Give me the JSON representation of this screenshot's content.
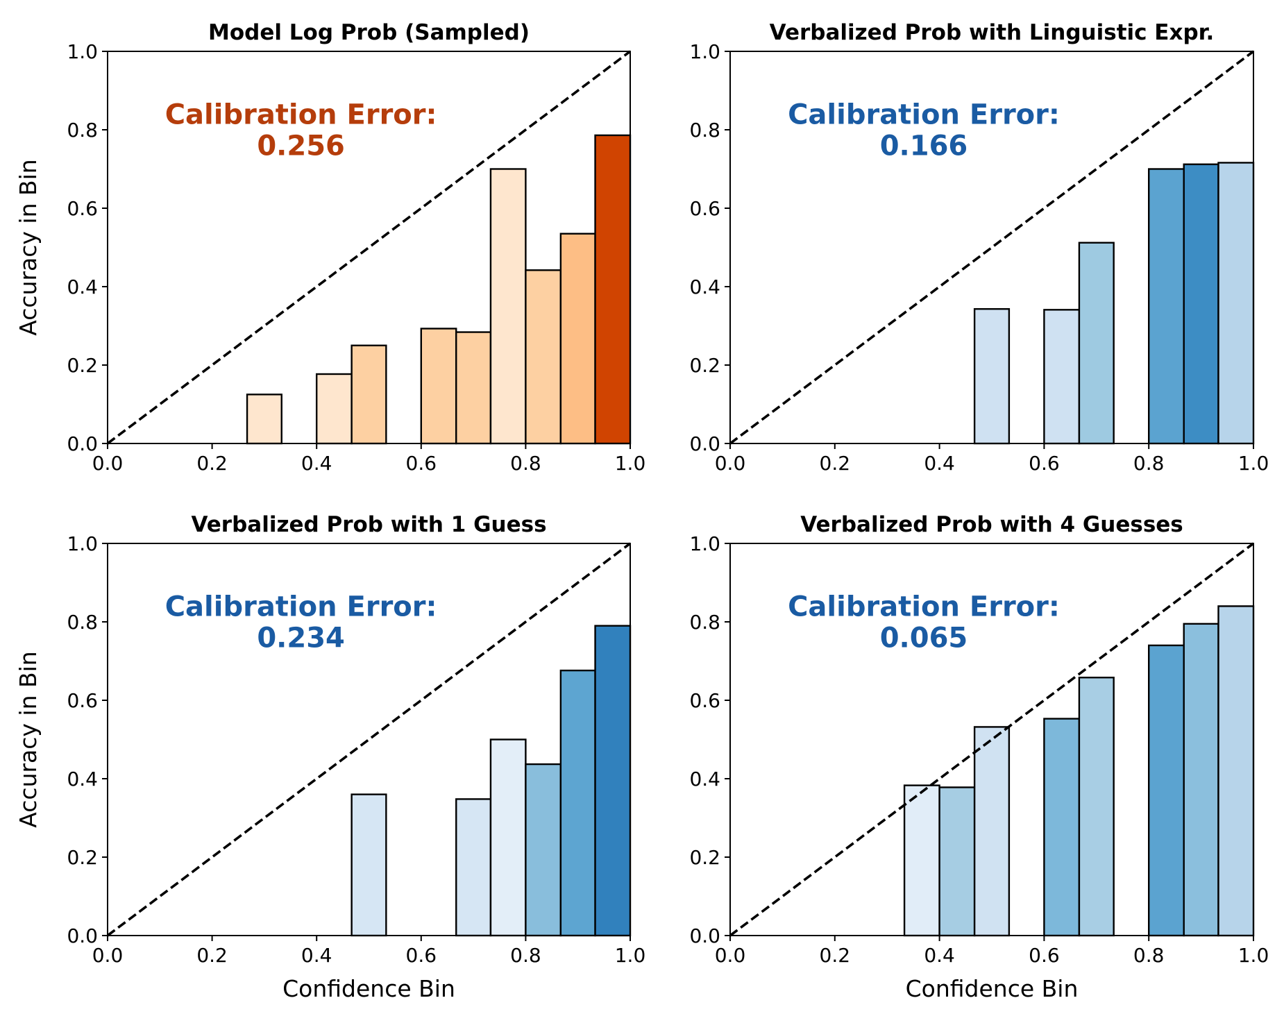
{
  "chart_data": [
    {
      "type": "bar",
      "title": "Model Log Prob (Sampled)",
      "xlabel": "",
      "ylabel": "Accuracy in Bin",
      "xlim": [
        0,
        1
      ],
      "ylim": [
        0,
        1
      ],
      "xticks": [
        "0.0",
        "0.2",
        "0.4",
        "0.6",
        "0.8",
        "1.0"
      ],
      "yticks": [
        "0.0",
        "0.2",
        "0.4",
        "0.6",
        "0.8",
        "1.0"
      ],
      "annotation": {
        "label": "Calibration Error:",
        "value": "0.256",
        "color": "#b53d0b"
      },
      "diagonal": true,
      "bins": [
        {
          "x0": 0.267,
          "x1": 0.333,
          "value": 0.125,
          "color": "#fee6ce"
        },
        {
          "x0": 0.4,
          "x1": 0.467,
          "value": 0.177,
          "color": "#fee6ce"
        },
        {
          "x0": 0.467,
          "x1": 0.533,
          "value": 0.25,
          "color": "#fdd0a2"
        },
        {
          "x0": 0.6,
          "x1": 0.667,
          "value": 0.293,
          "color": "#fdd0a2"
        },
        {
          "x0": 0.667,
          "x1": 0.733,
          "value": 0.284,
          "color": "#fdd0a2"
        },
        {
          "x0": 0.733,
          "x1": 0.8,
          "value": 0.7,
          "color": "#fee6ce"
        },
        {
          "x0": 0.8,
          "x1": 0.867,
          "value": 0.442,
          "color": "#fdd0a2"
        },
        {
          "x0": 0.867,
          "x1": 0.933,
          "value": 0.535,
          "color": "#fdbe85"
        },
        {
          "x0": 0.933,
          "x1": 1.0,
          "value": 0.786,
          "color": "#d04401"
        }
      ]
    },
    {
      "type": "bar",
      "title": "Verbalized Prob with Linguistic Expr.",
      "xlabel": "",
      "ylabel": "",
      "xlim": [
        0,
        1
      ],
      "ylim": [
        0,
        1
      ],
      "xticks": [
        "0.0",
        "0.2",
        "0.4",
        "0.6",
        "0.8",
        "1.0"
      ],
      "yticks": [
        "0.0",
        "0.2",
        "0.4",
        "0.6",
        "0.8",
        "1.0"
      ],
      "annotation": {
        "label": "Calibration Error:",
        "value": "0.166",
        "color": "#1a5ba3"
      },
      "diagonal": true,
      "bins": [
        {
          "x0": 0.467,
          "x1": 0.533,
          "value": 0.343,
          "color": "#cfe1f2"
        },
        {
          "x0": 0.6,
          "x1": 0.667,
          "value": 0.341,
          "color": "#cfe1f2"
        },
        {
          "x0": 0.667,
          "x1": 0.733,
          "value": 0.512,
          "color": "#9ecae1"
        },
        {
          "x0": 0.8,
          "x1": 0.867,
          "value": 0.7,
          "color": "#5ba3d0"
        },
        {
          "x0": 0.867,
          "x1": 0.933,
          "value": 0.712,
          "color": "#3d8dc4"
        },
        {
          "x0": 0.933,
          "x1": 1.0,
          "value": 0.716,
          "color": "#b7d4ea"
        }
      ]
    },
    {
      "type": "bar",
      "title": "Verbalized Prob with 1 Guess",
      "xlabel": "Confidence Bin",
      "ylabel": "Accuracy in Bin",
      "xlim": [
        0,
        1
      ],
      "ylim": [
        0,
        1
      ],
      "xticks": [
        "0.0",
        "0.2",
        "0.4",
        "0.6",
        "0.8",
        "1.0"
      ],
      "yticks": [
        "0.0",
        "0.2",
        "0.4",
        "0.6",
        "0.8",
        "1.0"
      ],
      "annotation": {
        "label": "Calibration Error:",
        "value": "0.234",
        "color": "#1a5ba3"
      },
      "diagonal": true,
      "bins": [
        {
          "x0": 0.467,
          "x1": 0.533,
          "value": 0.36,
          "color": "#d6e6f4"
        },
        {
          "x0": 0.667,
          "x1": 0.733,
          "value": 0.348,
          "color": "#d6e6f4"
        },
        {
          "x0": 0.733,
          "x1": 0.8,
          "value": 0.5,
          "color": "#e3eef8"
        },
        {
          "x0": 0.8,
          "x1": 0.867,
          "value": 0.437,
          "color": "#89bedc"
        },
        {
          "x0": 0.867,
          "x1": 0.933,
          "value": 0.676,
          "color": "#5da5d1"
        },
        {
          "x0": 0.933,
          "x1": 1.0,
          "value": 0.79,
          "color": "#3181bd"
        }
      ]
    },
    {
      "type": "bar",
      "title": "Verbalized Prob with 4 Guesses",
      "xlabel": "Confidence Bin",
      "ylabel": "",
      "xlim": [
        0,
        1
      ],
      "ylim": [
        0,
        1
      ],
      "xticks": [
        "0.0",
        "0.2",
        "0.4",
        "0.6",
        "0.8",
        "1.0"
      ],
      "yticks": [
        "0.0",
        "0.2",
        "0.4",
        "0.6",
        "0.8",
        "1.0"
      ],
      "annotation": {
        "label": "Calibration Error:",
        "value": "0.065",
        "color": "#1a5ba3"
      },
      "diagonal": true,
      "bins": [
        {
          "x0": 0.333,
          "x1": 0.4,
          "value": 0.383,
          "color": "#e1edf8"
        },
        {
          "x0": 0.4,
          "x1": 0.467,
          "value": 0.378,
          "color": "#a6cde3"
        },
        {
          "x0": 0.467,
          "x1": 0.533,
          "value": 0.532,
          "color": "#d0e2f2"
        },
        {
          "x0": 0.6,
          "x1": 0.667,
          "value": 0.553,
          "color": "#7db8da"
        },
        {
          "x0": 0.667,
          "x1": 0.733,
          "value": 0.658,
          "color": "#a8cee4"
        },
        {
          "x0": 0.8,
          "x1": 0.867,
          "value": 0.74,
          "color": "#5ba3d0"
        },
        {
          "x0": 0.867,
          "x1": 0.933,
          "value": 0.795,
          "color": "#8bbfdd"
        },
        {
          "x0": 0.933,
          "x1": 1.0,
          "value": 0.84,
          "color": "#b7d4ea"
        }
      ]
    }
  ]
}
